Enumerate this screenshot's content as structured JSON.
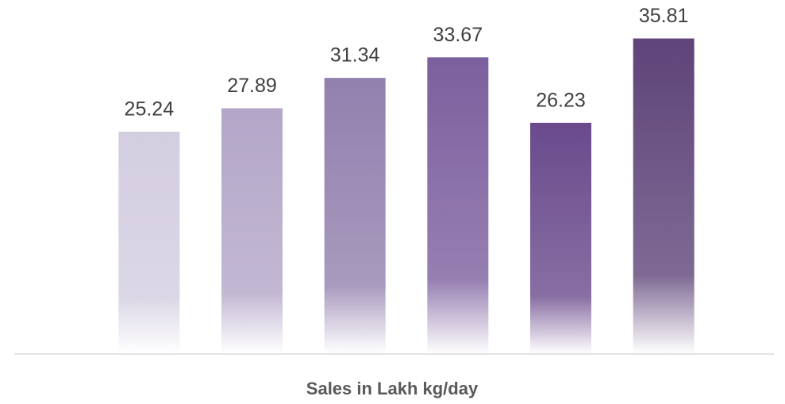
{
  "chart_data": {
    "type": "bar",
    "x_label": "Sales in Lakh kg/day",
    "categories": [
      null,
      null,
      null,
      null,
      null,
      null
    ],
    "values": [
      25.24,
      27.89,
      31.34,
      33.67,
      26.23,
      35.81
    ],
    "colors": [
      "#d3cde0",
      "#b3a6c8",
      "#9280ae",
      "#7c5f9e",
      "#6a4a8c",
      "#5e4479"
    ],
    "ylim": [
      0,
      40
    ]
  }
}
